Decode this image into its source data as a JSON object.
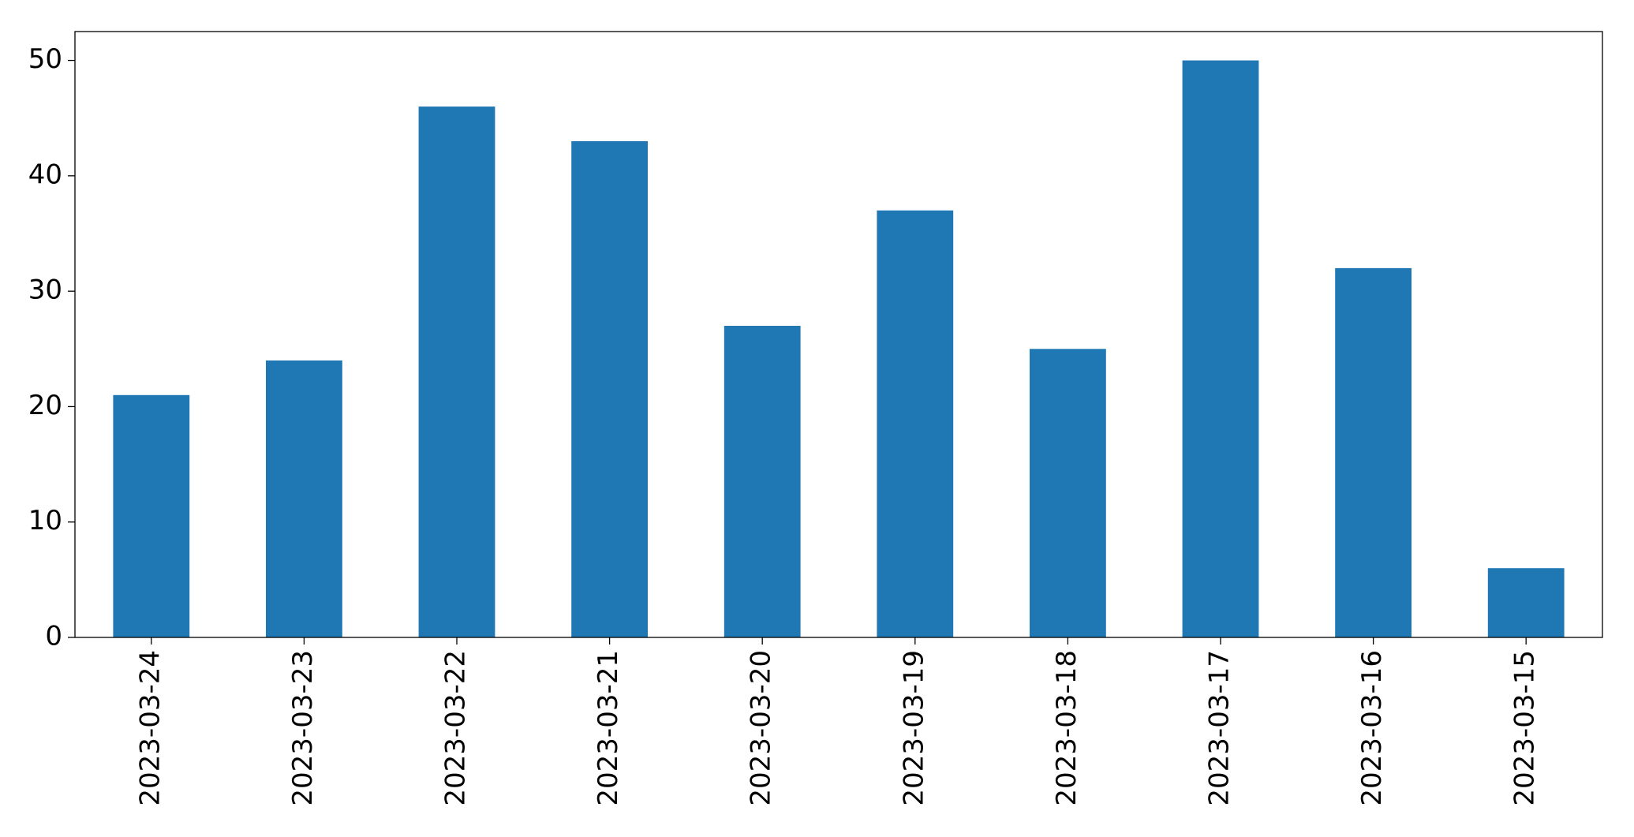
{
  "chart_data": {
    "type": "bar",
    "categories": [
      "2023-03-24",
      "2023-03-23",
      "2023-03-22",
      "2023-03-21",
      "2023-03-20",
      "2023-03-19",
      "2023-03-18",
      "2023-03-17",
      "2023-03-16",
      "2023-03-15"
    ],
    "values": [
      21,
      24,
      46,
      43,
      27,
      37,
      25,
      50,
      32,
      6
    ],
    "color": "#1f77b4",
    "ylim": [
      0,
      52.5
    ],
    "yticks": [
      0,
      10,
      20,
      30,
      40,
      50
    ],
    "grid": false
  }
}
